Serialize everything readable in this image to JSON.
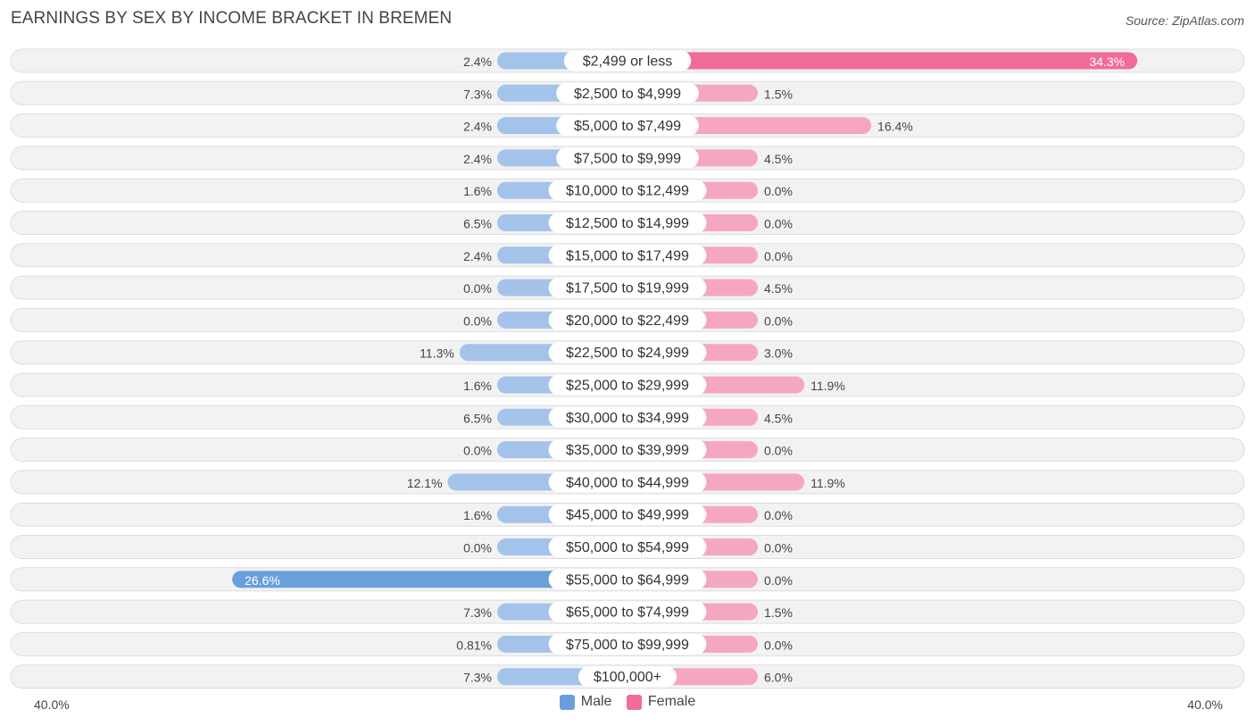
{
  "title": "EARNINGS BY SEX BY INCOME BRACKET IN BREMEN",
  "source": "Source: ZipAtlas.com",
  "colors": {
    "male_light": "#a4c3ea",
    "male_strong": "#6a9fdc",
    "female_light": "#f5a7c1",
    "female_strong": "#f06c97",
    "row_bg": "#f2f2f2",
    "row_border": "#dddddd"
  },
  "legend": {
    "male": "Male",
    "female": "Female"
  },
  "axis": {
    "left_label": "40.0%",
    "right_label": "40.0%"
  },
  "chart_data": {
    "type": "bar",
    "orientation": "diverging-horizontal",
    "title": "EARNINGS BY SEX BY INCOME BRACKET IN BREMEN",
    "xlim": [
      -40,
      40
    ],
    "categories": [
      "$2,499 or less",
      "$2,500 to $4,999",
      "$5,000 to $7,499",
      "$7,500 to $9,999",
      "$10,000 to $12,499",
      "$12,500 to $14,999",
      "$15,000 to $17,499",
      "$17,500 to $19,999",
      "$20,000 to $22,499",
      "$22,500 to $24,999",
      "$25,000 to $29,999",
      "$30,000 to $34,999",
      "$35,000 to $39,999",
      "$40,000 to $44,999",
      "$45,000 to $49,999",
      "$50,000 to $54,999",
      "$55,000 to $64,999",
      "$65,000 to $74,999",
      "$75,000 to $99,999",
      "$100,000+"
    ],
    "series": [
      {
        "name": "Male",
        "values": [
          2.4,
          7.3,
          2.4,
          2.4,
          1.6,
          6.5,
          2.4,
          0.0,
          0.0,
          11.3,
          1.6,
          6.5,
          0.0,
          12.1,
          1.6,
          0.0,
          26.6,
          7.3,
          0.81,
          7.3
        ],
        "labels": [
          "2.4%",
          "7.3%",
          "2.4%",
          "2.4%",
          "1.6%",
          "6.5%",
          "2.4%",
          "0.0%",
          "0.0%",
          "11.3%",
          "1.6%",
          "6.5%",
          "0.0%",
          "12.1%",
          "1.6%",
          "0.0%",
          "26.6%",
          "7.3%",
          "0.81%",
          "7.3%"
        ]
      },
      {
        "name": "Female",
        "values": [
          34.3,
          1.5,
          16.4,
          4.5,
          0.0,
          0.0,
          0.0,
          4.5,
          0.0,
          3.0,
          11.9,
          4.5,
          0.0,
          11.9,
          0.0,
          0.0,
          0.0,
          1.5,
          0.0,
          6.0
        ],
        "labels": [
          "34.3%",
          "1.5%",
          "16.4%",
          "4.5%",
          "0.0%",
          "0.0%",
          "0.0%",
          "4.5%",
          "0.0%",
          "3.0%",
          "11.9%",
          "4.5%",
          "0.0%",
          "11.9%",
          "0.0%",
          "0.0%",
          "0.0%",
          "1.5%",
          "0.0%",
          "6.0%"
        ]
      }
    ]
  }
}
